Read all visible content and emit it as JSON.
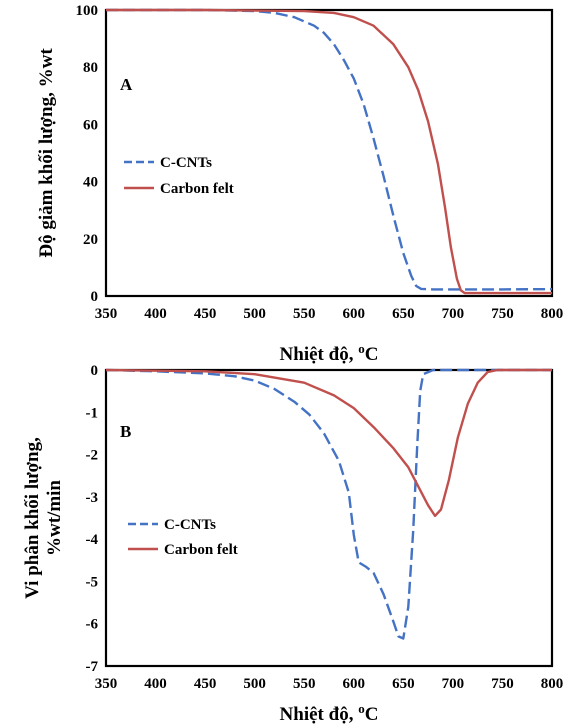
{
  "colors": {
    "c_cnts": "#4472C4",
    "carbon_felt": "#C0504D"
  },
  "chart_data": [
    {
      "type": "line",
      "panel_label": "A",
      "xlabel": "Nhiệt độ, ",
      "xlabel_unit": "oC",
      "ylabel": "Độ giảm khối lượng, %wt",
      "xlim": [
        350,
        800
      ],
      "ylim": [
        0,
        100
      ],
      "x_ticks": [
        350,
        400,
        450,
        500,
        550,
        600,
        650,
        700,
        750,
        800
      ],
      "y_ticks": [
        0,
        20,
        40,
        60,
        80,
        100
      ],
      "legend_position": "middle-left",
      "series": [
        {
          "name": "C-CNTs",
          "style": "dashed",
          "color": "#4472C4",
          "points": [
            [
              350,
              100
            ],
            [
              400,
              100
            ],
            [
              450,
              100
            ],
            [
              500,
              99.6
            ],
            [
              520,
              99
            ],
            [
              540,
              97.5
            ],
            [
              560,
              94.5
            ],
            [
              570,
              92
            ],
            [
              580,
              88
            ],
            [
              590,
              82.5
            ],
            [
              600,
              76
            ],
            [
              610,
              67
            ],
            [
              620,
              55
            ],
            [
              630,
              42
            ],
            [
              640,
              28
            ],
            [
              650,
              15
            ],
            [
              658,
              7
            ],
            [
              663,
              3.5
            ],
            [
              668,
              2.5
            ],
            [
              680,
              2.3
            ],
            [
              750,
              2.3
            ],
            [
              800,
              2.4
            ]
          ]
        },
        {
          "name": "Carbon felt",
          "style": "solid",
          "color": "#C0504D",
          "points": [
            [
              350,
              100
            ],
            [
              450,
              100
            ],
            [
              550,
              99.6
            ],
            [
              580,
              99
            ],
            [
              600,
              97.5
            ],
            [
              620,
              94.5
            ],
            [
              640,
              88
            ],
            [
              655,
              80
            ],
            [
              665,
              72
            ],
            [
              675,
              61
            ],
            [
              685,
              46
            ],
            [
              692,
              31
            ],
            [
              698,
              17
            ],
            [
              704,
              6
            ],
            [
              708,
              2
            ],
            [
              712,
              1
            ],
            [
              750,
              1
            ],
            [
              800,
              1
            ]
          ]
        }
      ]
    },
    {
      "type": "line",
      "panel_label": "B",
      "xlabel": "Nhiệt độ, ",
      "xlabel_unit": "oC",
      "ylabel_line1": "Vi phân khối lượng,",
      "ylabel_line2": "%wt/min",
      "xlim": [
        350,
        800
      ],
      "ylim": [
        -7,
        0
      ],
      "x_ticks": [
        350,
        400,
        450,
        500,
        550,
        600,
        650,
        700,
        750,
        800
      ],
      "y_ticks": [
        0,
        -1,
        -2,
        -3,
        -4,
        -5,
        -6,
        -7
      ],
      "legend_position": "bottom-left",
      "series": [
        {
          "name": "C-CNTs",
          "style": "dashed",
          "color": "#4472C4",
          "points": [
            [
              350,
              0
            ],
            [
              400,
              -0.03
            ],
            [
              450,
              -0.08
            ],
            [
              480,
              -0.15
            ],
            [
              500,
              -0.25
            ],
            [
              520,
              -0.45
            ],
            [
              540,
              -0.75
            ],
            [
              555,
              -1.05
            ],
            [
              570,
              -1.5
            ],
            [
              585,
              -2.15
            ],
            [
              595,
              -2.9
            ],
            [
              600,
              -3.9
            ],
            [
              605,
              -4.55
            ],
            [
              612,
              -4.65
            ],
            [
              620,
              -4.8
            ],
            [
              630,
              -5.3
            ],
            [
              640,
              -5.95
            ],
            [
              645,
              -6.3
            ],
            [
              650,
              -6.35
            ],
            [
              655,
              -5.6
            ],
            [
              660,
              -3.8
            ],
            [
              664,
              -1.8
            ],
            [
              667,
              -0.5
            ],
            [
              670,
              -0.1
            ],
            [
              680,
              0
            ],
            [
              750,
              0
            ],
            [
              800,
              0
            ]
          ]
        },
        {
          "name": "Carbon felt",
          "style": "solid",
          "color": "#C0504D",
          "points": [
            [
              350,
              0
            ],
            [
              450,
              -0.03
            ],
            [
              500,
              -0.1
            ],
            [
              550,
              -0.3
            ],
            [
              580,
              -0.6
            ],
            [
              600,
              -0.9
            ],
            [
              620,
              -1.35
            ],
            [
              640,
              -1.85
            ],
            [
              655,
              -2.3
            ],
            [
              665,
              -2.75
            ],
            [
              675,
              -3.2
            ],
            [
              682,
              -3.45
            ],
            [
              688,
              -3.3
            ],
            [
              696,
              -2.6
            ],
            [
              705,
              -1.6
            ],
            [
              715,
              -0.8
            ],
            [
              725,
              -0.3
            ],
            [
              735,
              -0.05
            ],
            [
              745,
              0
            ],
            [
              800,
              0
            ]
          ]
        }
      ]
    }
  ]
}
